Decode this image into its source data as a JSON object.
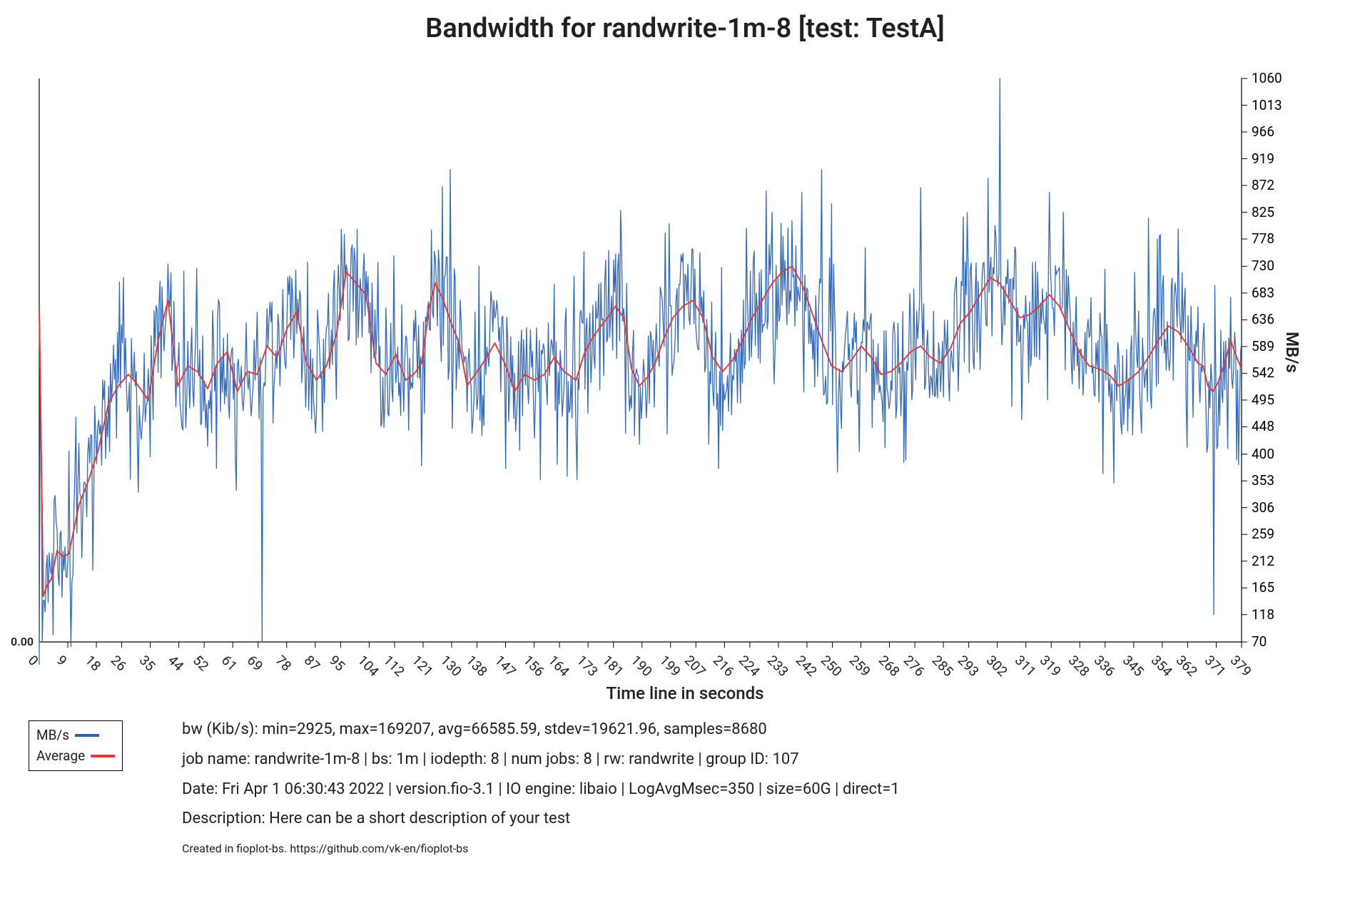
{
  "title": "Bandwidth for randwrite-1m-8  [test: TestA]",
  "chart": {
    "type": "line",
    "background_color": "#ffffff",
    "axis_color": "#000000",
    "raw_series": {
      "label": "MB/s",
      "color": "#2962b5",
      "line_width": 1.3
    },
    "avg_series": {
      "label": "Average",
      "color": "#e53935",
      "line_width": 1.8
    },
    "xlim": [
      0,
      379
    ],
    "ylim": [
      0,
      1060
    ],
    "y2lim": [
      70,
      1060
    ],
    "y2_ticks": [
      70,
      118,
      165,
      212,
      259,
      306,
      353,
      400,
      448,
      495,
      542,
      589,
      636,
      683,
      730,
      778,
      825,
      872,
      919,
      966,
      1013,
      1060
    ],
    "x_ticks": [
      0,
      9,
      18,
      26,
      35,
      44,
      52,
      61,
      69,
      78,
      87,
      95,
      104,
      112,
      121,
      130,
      138,
      147,
      156,
      164,
      173,
      181,
      190,
      199,
      207,
      216,
      224,
      233,
      242,
      250,
      259,
      268,
      276,
      285,
      293,
      302,
      311,
      319,
      328,
      336,
      345,
      354,
      362,
      371,
      379
    ],
    "x_label": "Time line in seconds",
    "y2_label": "MB/s",
    "left_zero_label": "0.00",
    "noise_amplitude": 95,
    "avg_curve": [
      [
        0,
        660
      ],
      [
        4,
        150
      ],
      [
        8,
        170
      ],
      [
        12,
        180
      ],
      [
        18,
        230
      ],
      [
        24,
        220
      ],
      [
        30,
        225
      ],
      [
        40,
        310
      ],
      [
        50,
        355
      ],
      [
        60,
        410
      ],
      [
        70,
        490
      ],
      [
        80,
        520
      ],
      [
        90,
        540
      ],
      [
        98,
        525
      ],
      [
        110,
        495
      ],
      [
        120,
        600
      ],
      [
        130,
        670
      ],
      [
        140,
        520
      ],
      [
        150,
        555
      ],
      [
        160,
        545
      ],
      [
        170,
        515
      ],
      [
        180,
        560
      ],
      [
        190,
        580
      ],
      [
        200,
        510
      ],
      [
        210,
        545
      ],
      [
        220,
        540
      ],
      [
        230,
        590
      ],
      [
        240,
        570
      ],
      [
        250,
        620
      ],
      [
        260,
        650
      ],
      [
        270,
        560
      ],
      [
        280,
        530
      ],
      [
        290,
        555
      ],
      [
        300,
        610
      ],
      [
        310,
        720
      ],
      [
        320,
        700
      ],
      [
        330,
        680
      ],
      [
        340,
        560
      ],
      [
        350,
        540
      ],
      [
        360,
        575
      ],
      [
        370,
        530
      ],
      [
        378,
        540
      ],
      [
        386,
        560
      ],
      [
        394,
        660
      ],
      [
        400,
        700
      ],
      [
        408,
        670
      ],
      [
        416,
        630
      ],
      [
        424,
        595
      ],
      [
        432,
        520
      ],
      [
        440,
        540
      ],
      [
        450,
        565
      ],
      [
        460,
        595
      ],
      [
        470,
        560
      ],
      [
        480,
        510
      ],
      [
        490,
        540
      ],
      [
        500,
        530
      ],
      [
        510,
        540
      ],
      [
        520,
        570
      ],
      [
        530,
        545
      ],
      [
        542,
        530
      ],
      [
        550,
        575
      ],
      [
        558,
        603
      ],
      [
        565,
        620
      ],
      [
        574,
        640
      ],
      [
        582,
        660
      ],
      [
        590,
        640
      ],
      [
        598,
        550
      ],
      [
        606,
        520
      ],
      [
        614,
        535
      ],
      [
        622,
        560
      ],
      [
        630,
        600
      ],
      [
        640,
        640
      ],
      [
        650,
        660
      ],
      [
        660,
        670
      ],
      [
        670,
        640
      ],
      [
        680,
        570
      ],
      [
        690,
        545
      ],
      [
        700,
        565
      ],
      [
        710,
        600
      ],
      [
        720,
        640
      ],
      [
        730,
        670
      ],
      [
        740,
        700
      ],
      [
        750,
        720
      ],
      [
        760,
        730
      ],
      [
        770,
        700
      ],
      [
        780,
        650
      ],
      [
        790,
        600
      ],
      [
        800,
        555
      ],
      [
        810,
        545
      ],
      [
        820,
        565
      ],
      [
        830,
        590
      ],
      [
        840,
        570
      ],
      [
        850,
        540
      ],
      [
        860,
        545
      ],
      [
        870,
        560
      ],
      [
        880,
        580
      ],
      [
        890,
        590
      ],
      [
        900,
        570
      ],
      [
        910,
        560
      ],
      [
        920,
        585
      ],
      [
        930,
        630
      ],
      [
        940,
        650
      ],
      [
        950,
        680
      ],
      [
        960,
        710
      ],
      [
        970,
        700
      ],
      [
        980,
        670
      ],
      [
        990,
        640
      ],
      [
        1000,
        645
      ],
      [
        1010,
        660
      ],
      [
        1020,
        680
      ],
      [
        1030,
        660
      ],
      [
        1040,
        620
      ],
      [
        1050,
        580
      ],
      [
        1060,
        555
      ],
      [
        1070,
        550
      ],
      [
        1080,
        540
      ],
      [
        1090,
        520
      ],
      [
        1100,
        530
      ],
      [
        1110,
        545
      ],
      [
        1120,
        570
      ],
      [
        1130,
        600
      ],
      [
        1140,
        625
      ],
      [
        1150,
        615
      ],
      [
        1160,
        590
      ],
      [
        1170,
        560
      ],
      [
        1175,
        555
      ],
      [
        1180,
        520
      ],
      [
        1185,
        510
      ],
      [
        1190,
        525
      ],
      [
        1197,
        560
      ],
      [
        1203,
        600
      ],
      [
        1209,
        570
      ],
      [
        1214,
        550
      ]
    ],
    "raw_spikes": [
      [
        0,
        0
      ],
      [
        3,
        70
      ],
      [
        100,
        333
      ],
      [
        225,
        70
      ],
      [
        407,
        870
      ],
      [
        415,
        900
      ],
      [
        740,
        825
      ],
      [
        760,
        810
      ],
      [
        770,
        860
      ],
      [
        790,
        900
      ],
      [
        800,
        840
      ],
      [
        890,
        868
      ],
      [
        970,
        1060
      ],
      [
        1020,
        860
      ],
      [
        1120,
        815
      ],
      [
        1186,
        118
      ],
      [
        1200,
        410
      ]
    ]
  },
  "legend": {
    "items": [
      {
        "label": "MB/s",
        "color": "#2962b5"
      },
      {
        "label": "Average",
        "color": "#e53935"
      }
    ]
  },
  "info": {
    "line1": "bw (Kib/s):   min=2925,   max=169207,   avg=66585.59,   stdev=19621.96,   samples=8680",
    "line2": "job name: randwrite-1m-8   |   bs: 1m   |   iodepth: 8   |   num jobs: 8   |   rw: randwrite   |   group ID: 107",
    "line3": "Date: Fri Apr  1 06:30:43 2022   |   version.fio-3.1   |   IO engine: libaio   |   LogAvgMsec=350   |   size=60G   | direct=1",
    "line4": "Description: Here can be a short description of your test",
    "credit": "Created in fioplot-bs. https://github.com/vk-en/fioplot-bs"
  }
}
